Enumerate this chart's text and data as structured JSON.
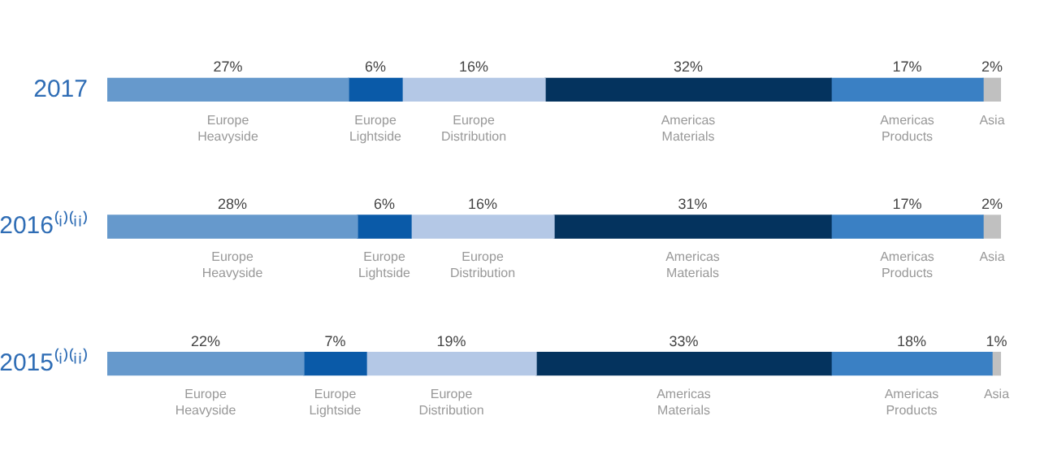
{
  "chart_data": {
    "type": "bar",
    "orientation": "horizontal",
    "stacked": true,
    "tick_labels": "y",
    "categories": [
      "2017",
      "2016⁽ⁱ⁾⁽ⁱⁱ⁾",
      "2015⁽ⁱ⁾⁽ⁱⁱ⁾"
    ],
    "series": [
      {
        "name": "Europe Heavyside",
        "color": "#6699cc",
        "values": [
          27,
          28,
          22
        ],
        "value_labels": [
          "27%",
          "28%",
          "22%"
        ]
      },
      {
        "name": "Europe Lightside",
        "color": "#0a5aa8",
        "values": [
          6,
          6,
          7
        ],
        "value_labels": [
          "6%",
          "6%",
          "7%"
        ]
      },
      {
        "name": "Europe Distribution",
        "color": "#b4c8e6",
        "values": [
          16,
          16,
          19
        ],
        "value_labels": [
          "16%",
          "16%",
          "19%"
        ]
      },
      {
        "name": "Americas Materials",
        "color": "#04335e",
        "values": [
          32,
          31,
          33
        ],
        "value_labels": [
          "32%",
          "31%",
          "33%"
        ]
      },
      {
        "name": "Americas Products",
        "color": "#3a80c4",
        "values": [
          17,
          17,
          18
        ],
        "value_labels": [
          "17%",
          "17%",
          "18%"
        ]
      },
      {
        "name": "Asia",
        "color": "#c0c0c0",
        "values": [
          2,
          2,
          1
        ],
        "value_labels": [
          "2%",
          "2%",
          "1%"
        ]
      }
    ]
  }
}
